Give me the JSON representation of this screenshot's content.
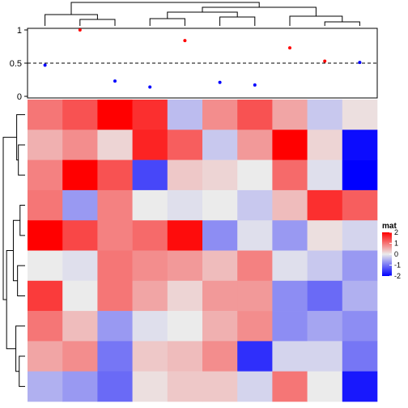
{
  "chart_data": [
    {
      "type": "scatter",
      "x": [
        1,
        2,
        3,
        4,
        5,
        6,
        7,
        8,
        9,
        10
      ],
      "y": [
        0.47,
        1.0,
        0.23,
        0.14,
        0.84,
        0.21,
        0.17,
        0.73,
        0.53,
        0.51
      ],
      "point_colors": [
        "#0000ff",
        "#ff0000",
        "#0000ff",
        "#0000ff",
        "#ff0000",
        "#0000ff",
        "#0000ff",
        "#ff0000",
        "#ff0000",
        "#0000ff"
      ],
      "threshold": 0.5,
      "ylim": [
        0,
        1
      ],
      "yticks": [
        {
          "value": 0,
          "label": "0"
        },
        {
          "value": 0.5,
          "label": "0.5"
        },
        {
          "value": 1,
          "label": "1"
        }
      ]
    },
    {
      "type": "heatmap",
      "matrix": [
        [
          1.0,
          1.3,
          2.4,
          1.6,
          -0.4,
          0.8,
          1.3,
          0.6,
          -0.3,
          0.1
        ],
        [
          0.5,
          0.8,
          0.2,
          1.7,
          1.2,
          -0.3,
          0.7,
          2.1,
          0.2,
          -1.9
        ],
        [
          0.9,
          2.4,
          1.3,
          -1.4,
          0.3,
          0.2,
          0.0,
          1.1,
          -0.1,
          -2.0
        ],
        [
          1.0,
          -0.7,
          0.9,
          0.0,
          -0.1,
          0.0,
          -0.3,
          0.4,
          1.6,
          1.2
        ],
        [
          2.0,
          1.4,
          0.9,
          1.1,
          1.9,
          -0.8,
          -0.1,
          -0.7,
          0.1,
          -0.2
        ],
        [
          0.0,
          -0.1,
          1.0,
          0.8,
          0.7,
          0.4,
          0.9,
          -0.1,
          -0.3,
          -0.7
        ],
        [
          1.5,
          0.0,
          1.0,
          0.6,
          0.2,
          0.7,
          0.7,
          -0.8,
          -1.1,
          -0.5
        ],
        [
          1.0,
          0.4,
          -0.7,
          -0.1,
          0.0,
          0.5,
          0.8,
          -0.8,
          -0.6,
          -0.8
        ],
        [
          0.6,
          0.8,
          -1.0,
          0.3,
          0.4,
          0.8,
          -1.6,
          -0.2,
          -0.2,
          -1.0
        ],
        [
          -0.5,
          -0.7,
          -1.1,
          0.1,
          0.3,
          0.3,
          -0.2,
          1.0,
          0.0,
          -1.8
        ]
      ],
      "color_scale": {
        "low": -2,
        "mid": 0,
        "high": 2,
        "low_color": "#0000ff",
        "mid_color": "#ebebeb",
        "high_color": "#ff0000"
      },
      "legend": {
        "title": "mat",
        "placement": "right",
        "ticks": [
          {
            "value": 2,
            "label": "2"
          },
          {
            "value": 1,
            "label": "1"
          },
          {
            "value": 0,
            "label": "0"
          },
          {
            "value": -1,
            "label": "-1"
          },
          {
            "value": -2,
            "label": "-2"
          }
        ]
      },
      "column_dendrogram": true,
      "row_dendrogram": true
    }
  ]
}
